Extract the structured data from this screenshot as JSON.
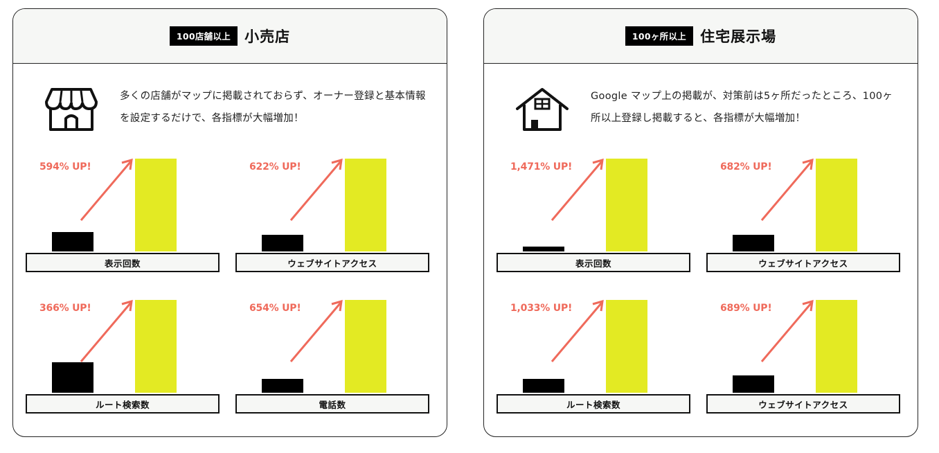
{
  "colors": {
    "accent": "#ef6a5b",
    "bar_after": "#e3ea23",
    "bar_before": "#000000",
    "header_bg": "#f6f7f5"
  },
  "cards": [
    {
      "badge": "100店舗以上",
      "title": "小売店",
      "icon": "storefront-icon",
      "text": "多くの店舗がマップに掲載されておらず、オーナー登録と基本情報を設定するだけで、各指標が大幅増加！",
      "metrics": [
        {
          "label": "表示回数",
          "percent": "594% UP!",
          "before": 28,
          "after": 134
        },
        {
          "label": "ウェブサイトアクセス",
          "percent": "622% UP!",
          "before": 24,
          "after": 134
        },
        {
          "label": "ルート検索数",
          "percent": "366% UP!",
          "before": 44,
          "after": 134
        },
        {
          "label": "電話数",
          "percent": "654% UP!",
          "before": 20,
          "after": 134
        }
      ]
    },
    {
      "badge": "100ヶ所以上",
      "title": "住宅展示場",
      "icon": "house-icon",
      "text": "Google マップ上の掲載が、対策前は5ヶ所だったところ、100ヶ所以上登録し掲載すると、各指標が大幅増加！",
      "metrics": [
        {
          "label": "表示回数",
          "percent": "1,471% UP!",
          "before": 7,
          "after": 134
        },
        {
          "label": "ウェブサイトアクセス",
          "percent": "682% UP!",
          "before": 24,
          "after": 134
        },
        {
          "label": "ルート検索数",
          "percent": "1,033% UP!",
          "before": 20,
          "after": 134
        },
        {
          "label": "ウェブサイトアクセス",
          "percent": "689% UP!",
          "before": 25,
          "after": 134
        }
      ]
    }
  ]
}
